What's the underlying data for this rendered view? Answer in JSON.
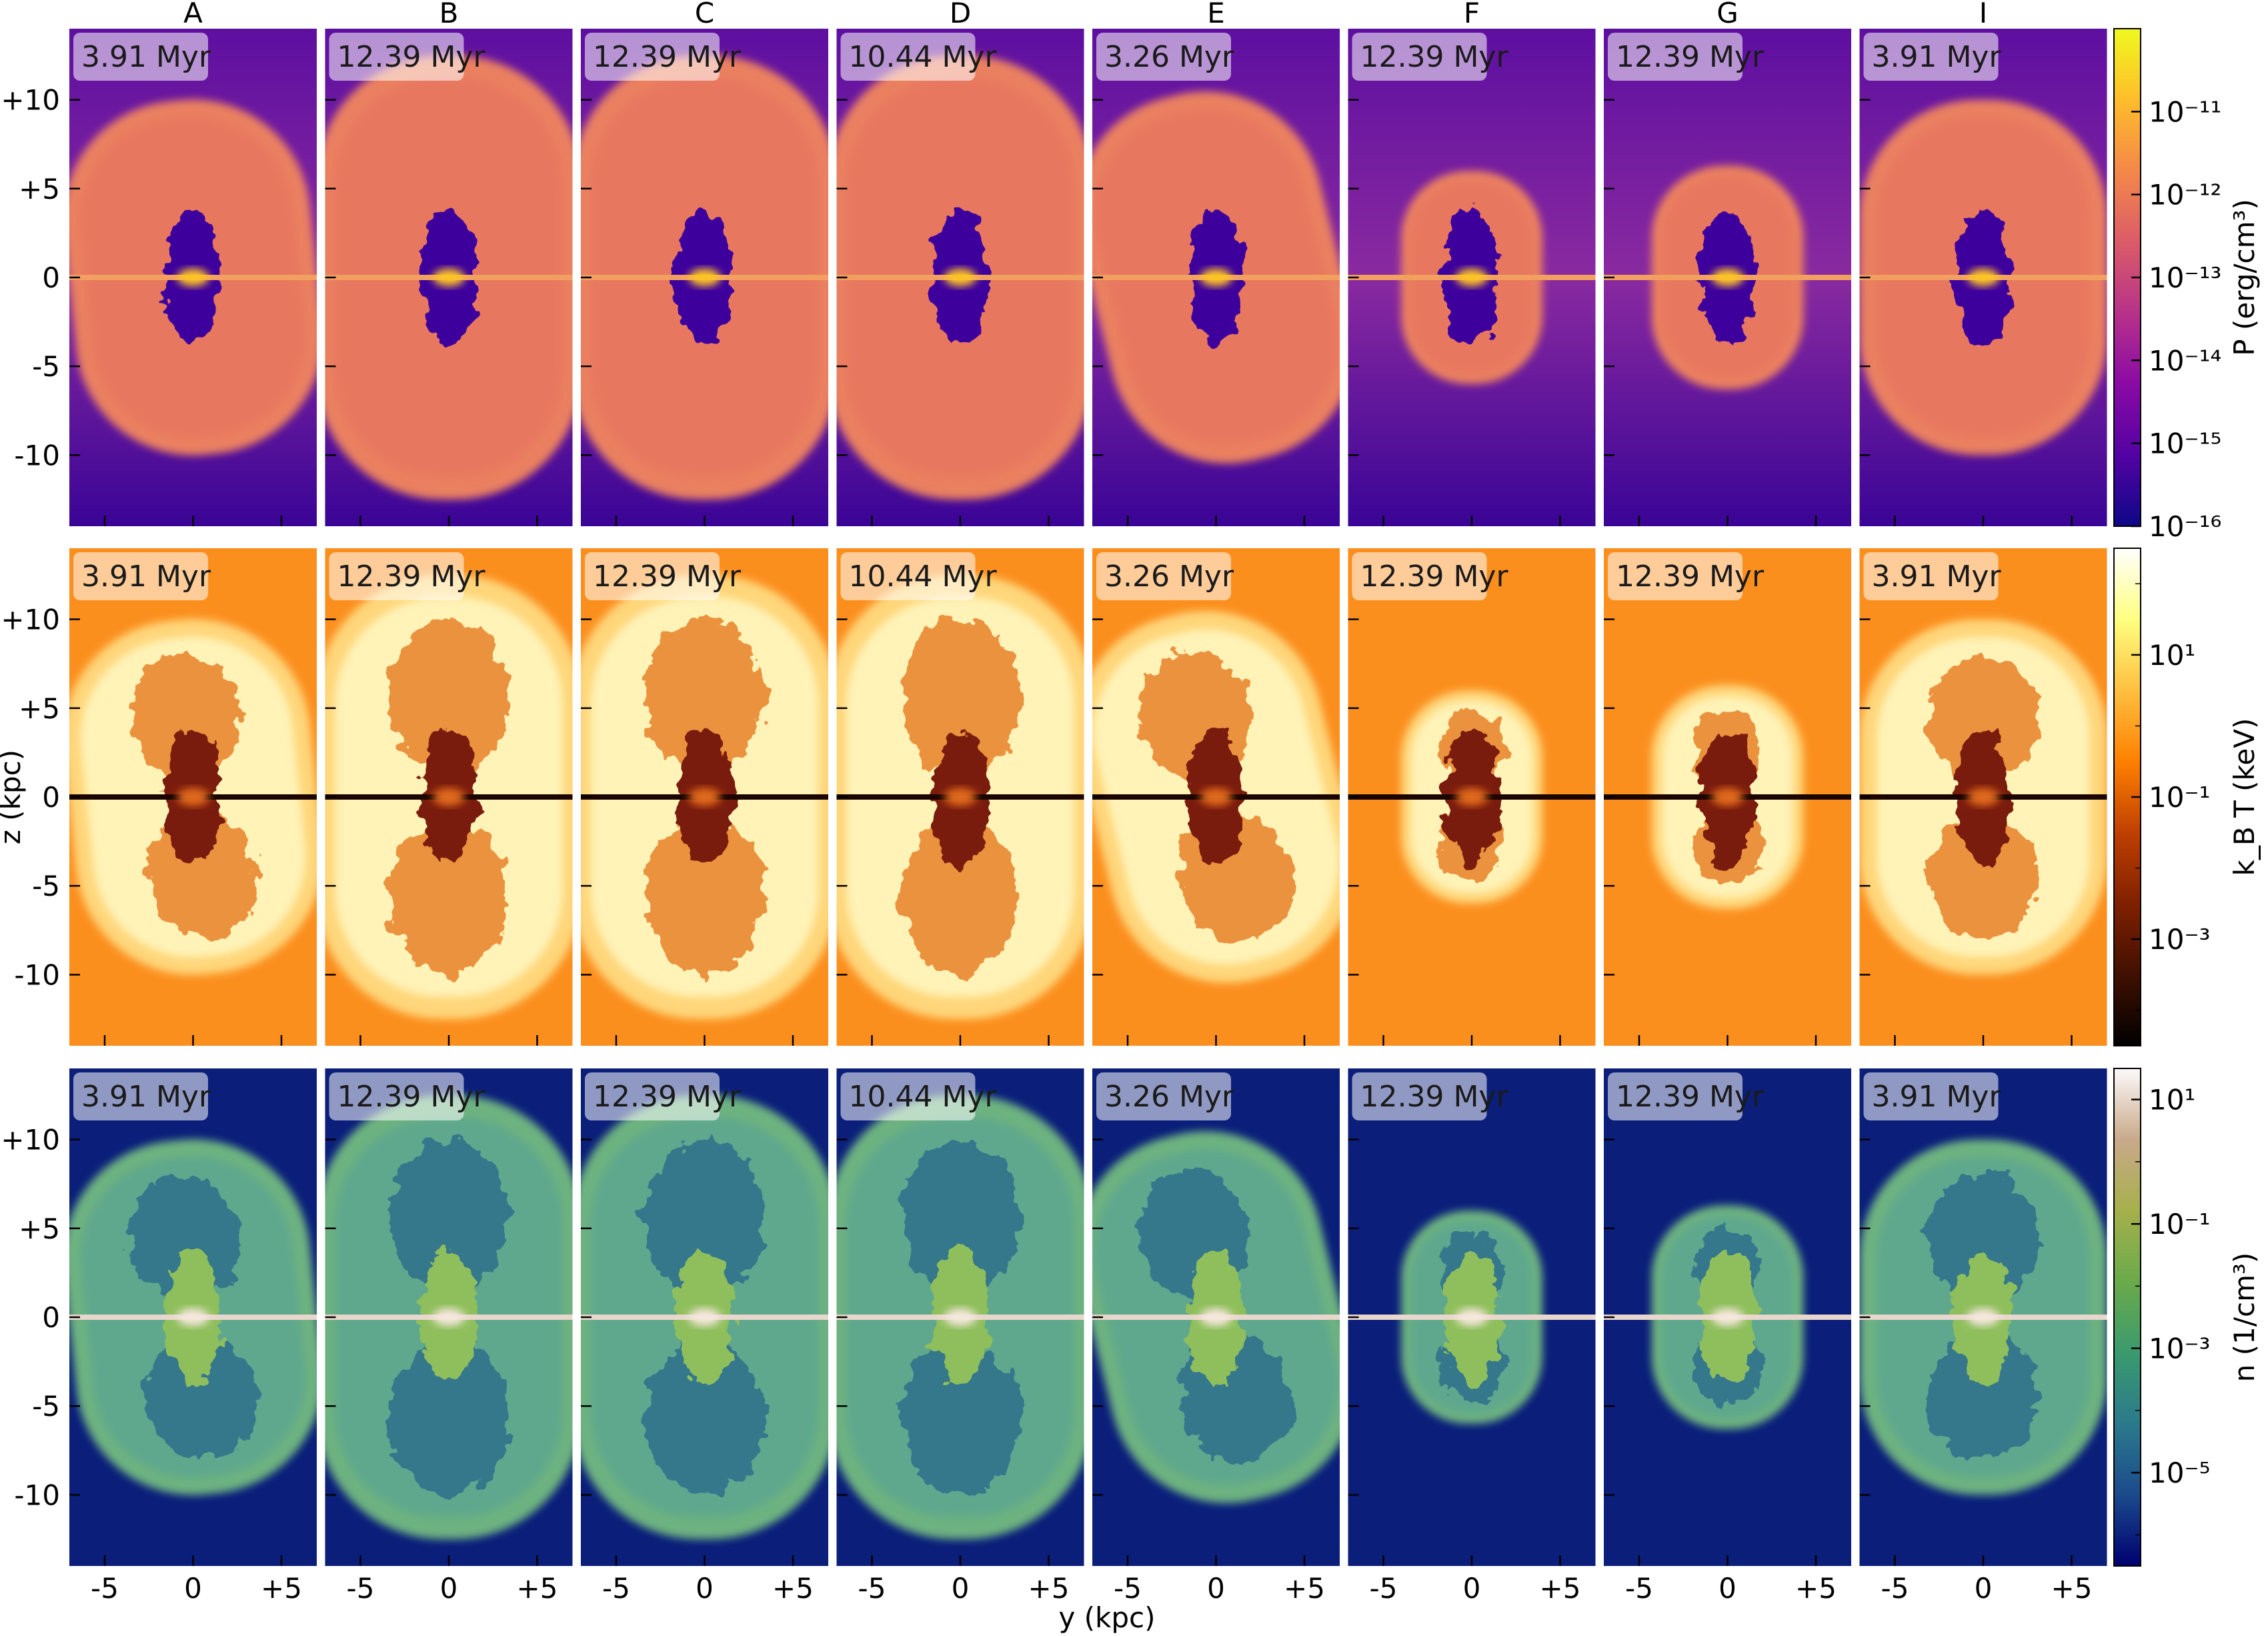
{
  "chart_data": {
    "type": "heatmap",
    "title": "",
    "columns": [
      "A",
      "B",
      "C",
      "D",
      "E",
      "F",
      "G",
      "I"
    ],
    "times": [
      "3.91 Myr",
      "12.39 Myr",
      "12.39 Myr",
      "10.44 Myr",
      "3.26 Myr",
      "12.39 Myr",
      "12.39 Myr",
      "3.91 Myr"
    ],
    "bubble": {
      "half_width_kpc": [
        7.0,
        7.5,
        7.5,
        7.5,
        7.0,
        4.0,
        4.3,
        7.0
      ],
      "half_height_kpc": [
        10.0,
        12.5,
        12.5,
        12.5,
        10.5,
        6.0,
        6.3,
        10.0
      ],
      "tilt_deg": [
        -6,
        0,
        0,
        0,
        -14,
        0,
        0,
        0
      ]
    },
    "xlabel": "y (kpc)",
    "ylabel": "z (kpc)",
    "xlim": [
      -7,
      7
    ],
    "ylim": [
      -14,
      14
    ],
    "x_ticks": [
      "-5",
      "0",
      "+5"
    ],
    "x_tick_values": [
      -5,
      0,
      5
    ],
    "y_ticks": [
      "+10",
      "+5",
      "0",
      "-5",
      "-10"
    ],
    "y_tick_values": [
      10,
      5,
      0,
      -5,
      -10
    ],
    "rows": [
      {
        "quantity": "pressure",
        "colormap": "plasma",
        "colorbar_label": "P (erg/cm³)",
        "colorbar_ticks": [
          "10⁻¹¹",
          "10⁻¹²",
          "10⁻¹³",
          "10⁻¹⁴",
          "10⁻¹⁵",
          "10⁻¹⁶"
        ],
        "colorbar_tick_exponents": [
          -11,
          -12,
          -13,
          -14,
          -15,
          -16
        ],
        "colorbar_range_log": [
          -16,
          -10
        ],
        "colors": {
          "background_top": "#5d0fa0",
          "background_bottom": "#3a0496",
          "bubble": "#e8775f",
          "bubble_outer": "#ea8060",
          "cavity": "#3e049c",
          "core": "#fdc328"
        }
      },
      {
        "quantity": "temperature",
        "colormap": "afmhot",
        "colorbar_label": "k_B T (keV)",
        "colorbar_ticks": [
          "10¹",
          "10⁻¹",
          "10⁻³"
        ],
        "colorbar_tick_exponents": [
          1,
          -1,
          -3
        ],
        "colorbar_range_log": [
          -4.5,
          2.5
        ],
        "colors": {
          "background_top": "#fb8f1e",
          "background_bottom": "#fb8f1e",
          "bubble": "#fff3b8",
          "bubble_outer": "#ffd67a",
          "cavity": "#7a1d0a",
          "core": "#e36a1a"
        }
      },
      {
        "quantity": "density",
        "colormap": "gist_earth",
        "colorbar_label": "n (1/cm³)",
        "colorbar_ticks": [
          "10¹",
          "10⁻¹",
          "10⁻³",
          "10⁻⁵"
        ],
        "colorbar_tick_exponents": [
          1,
          -1,
          -3,
          -5
        ],
        "colorbar_range_log": [
          -6.5,
          1.5
        ],
        "colors": {
          "background_top": "#0a1e7a",
          "background_bottom": "#0a1e7a",
          "bubble": "#5fa88d",
          "bubble_outer": "#6db280",
          "cavity": "#8fbf5c",
          "core": "#f5e7dc"
        }
      }
    ]
  }
}
